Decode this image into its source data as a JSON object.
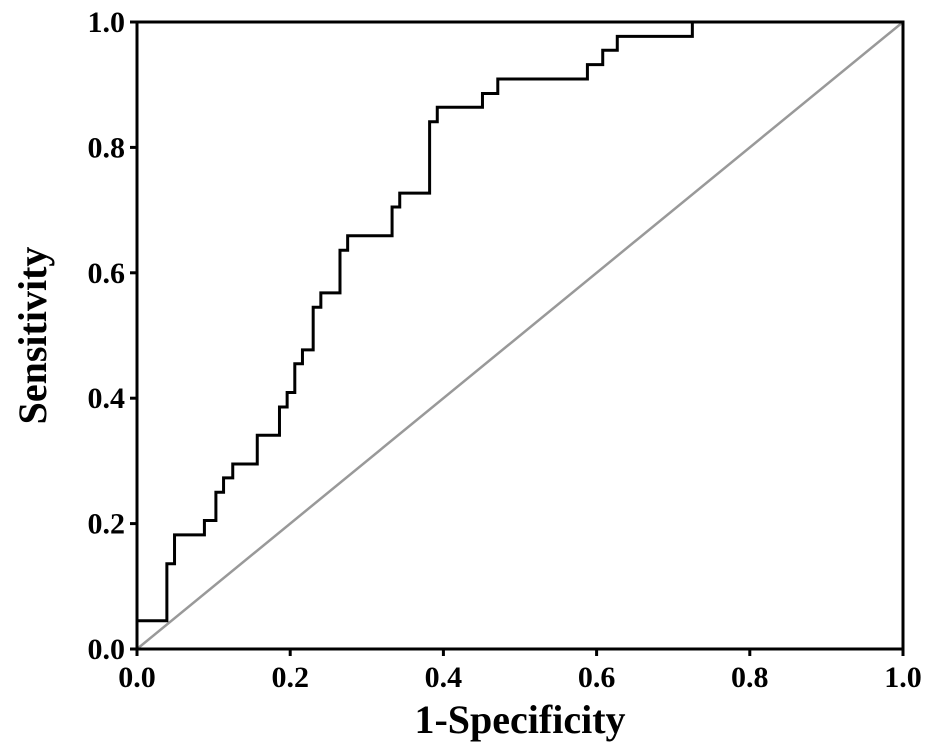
{
  "chart_data": {
    "type": "line",
    "title": "",
    "xlabel": "1-Specificity",
    "ylabel": "Sensitivity",
    "xlim": [
      0.0,
      1.0
    ],
    "ylim": [
      0.0,
      1.0
    ],
    "x_ticks": [
      "0.0",
      "0.2",
      "0.4",
      "0.6",
      "0.8",
      "1.0"
    ],
    "y_ticks": [
      "0.0",
      "0.2",
      "0.4",
      "0.6",
      "0.8",
      "1.0"
    ],
    "grid": false,
    "legend": "none",
    "series": [
      {
        "role": "roc_curve",
        "color": "#000000",
        "x": [
          0.0,
          0.0,
          0.039,
          0.039,
          0.049,
          0.049,
          0.088,
          0.088,
          0.103,
          0.103,
          0.113,
          0.113,
          0.125,
          0.125,
          0.157,
          0.157,
          0.186,
          0.186,
          0.196,
          0.196,
          0.206,
          0.206,
          0.216,
          0.216,
          0.23,
          0.23,
          0.24,
          0.24,
          0.265,
          0.265,
          0.275,
          0.275,
          0.289,
          0.289,
          0.333,
          0.333,
          0.343,
          0.343,
          0.382,
          0.382,
          0.392,
          0.392,
          0.451,
          0.451,
          0.471,
          0.471,
          0.588,
          0.588,
          0.608,
          0.608,
          0.618,
          0.618,
          0.627,
          0.627,
          0.725,
          0.725,
          1.0
        ],
        "y": [
          0.0,
          0.045,
          0.045,
          0.136,
          0.136,
          0.182,
          0.182,
          0.205,
          0.205,
          0.25,
          0.25,
          0.273,
          0.273,
          0.295,
          0.295,
          0.341,
          0.341,
          0.386,
          0.386,
          0.409,
          0.409,
          0.455,
          0.455,
          0.477,
          0.477,
          0.545,
          0.545,
          0.568,
          0.568,
          0.636,
          0.636,
          0.659,
          0.659,
          0.659,
          0.659,
          0.705,
          0.705,
          0.727,
          0.727,
          0.841,
          0.841,
          0.864,
          0.864,
          0.886,
          0.886,
          0.909,
          0.909,
          0.932,
          0.932,
          0.955,
          0.955,
          0.955,
          0.955,
          0.977,
          0.977,
          1.0,
          1.0
        ]
      },
      {
        "role": "reference_diagonal",
        "color": "#999999",
        "x": [
          0.0,
          1.0
        ],
        "y": [
          0.0,
          1.0
        ]
      }
    ]
  }
}
